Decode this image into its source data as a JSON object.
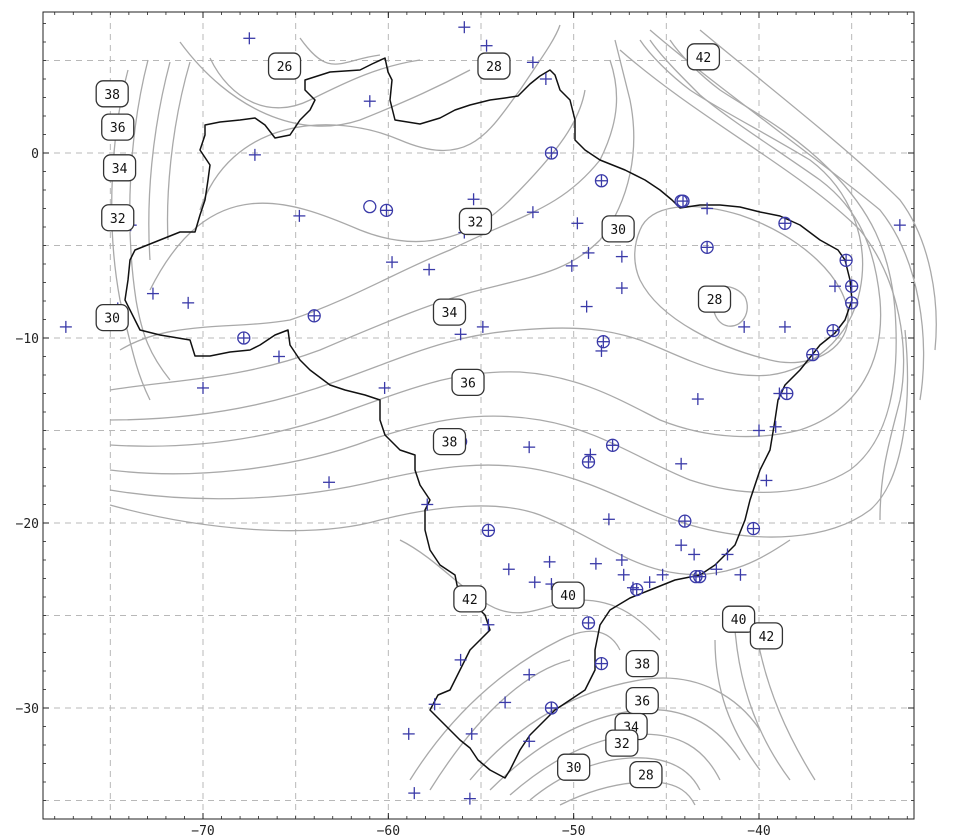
{
  "axes": {
    "x_ticks": [
      -70,
      -60,
      -50,
      -40
    ],
    "y_ticks": [
      0,
      -10,
      -20,
      -30
    ],
    "x_tick_labels": [
      "−70",
      "−60",
      "−50",
      "−40"
    ],
    "y_tick_labels": [
      "0",
      "−10",
      "−20",
      "−30"
    ],
    "xlim": [
      -78,
      -31
    ],
    "ylim": [
      -35.7,
      7.8
    ],
    "grid_x": [
      -75,
      -70,
      -65,
      -60,
      -55,
      -50,
      -45,
      -40,
      -35
    ],
    "grid_y": [
      5,
      0,
      -5,
      -10,
      -15,
      -20,
      -25,
      -30,
      -35
    ]
  },
  "contour_labels": [
    {
      "text": "26",
      "lon": -65.6,
      "lat": 4.7
    },
    {
      "text": "28",
      "lon": -54.3,
      "lat": 4.7
    },
    {
      "text": "42",
      "lon": -43.0,
      "lat": 5.2
    },
    {
      "text": "38",
      "lon": -74.9,
      "lat": 3.2
    },
    {
      "text": "36",
      "lon": -74.6,
      "lat": 1.4
    },
    {
      "text": "34",
      "lon": -74.5,
      "lat": -0.8
    },
    {
      "text": "32",
      "lon": -74.6,
      "lat": -3.5
    },
    {
      "text": "32",
      "lon": -55.3,
      "lat": -3.7
    },
    {
      "text": "30",
      "lon": -47.6,
      "lat": -4.1
    },
    {
      "text": "28",
      "lon": -42.4,
      "lat": -7.9
    },
    {
      "text": "30",
      "lon": -74.9,
      "lat": -8.9
    },
    {
      "text": "34",
      "lon": -56.7,
      "lat": -8.6
    },
    {
      "text": "36",
      "lon": -55.7,
      "lat": -12.4
    },
    {
      "text": "38",
      "lon": -56.7,
      "lat": -15.6
    },
    {
      "text": "42",
      "lon": -55.6,
      "lat": -24.1
    },
    {
      "text": "40",
      "lon": -50.3,
      "lat": -23.9
    },
    {
      "text": "40",
      "lon": -41.1,
      "lat": -25.2
    },
    {
      "text": "42",
      "lon": -39.6,
      "lat": -26.1
    },
    {
      "text": "38",
      "lon": -46.3,
      "lat": -27.6
    },
    {
      "text": "36",
      "lon": -46.3,
      "lat": -29.6
    },
    {
      "text": "34",
      "lon": -46.9,
      "lat": -31.0
    },
    {
      "text": "32",
      "lon": -47.4,
      "lat": -31.9
    },
    {
      "text": "30",
      "lon": -50.0,
      "lat": -33.2
    },
    {
      "text": "28",
      "lon": -46.1,
      "lat": -33.6
    }
  ],
  "stations_plus": [
    [
      -55.9,
      6.8
    ],
    [
      -67.5,
      6.2
    ],
    [
      -54.7,
      5.8
    ],
    [
      -52.2,
      4.9
    ],
    [
      -51.5,
      4.0
    ],
    [
      -61.0,
      2.8
    ],
    [
      -67.2,
      -0.1
    ],
    [
      -64.8,
      -3.4
    ],
    [
      -55.4,
      -2.5
    ],
    [
      -52.2,
      -3.2
    ],
    [
      -49.8,
      -3.8
    ],
    [
      -49.2,
      -5.4
    ],
    [
      -50.1,
      -6.1
    ],
    [
      -47.4,
      -5.6
    ],
    [
      -59.8,
      -5.9
    ],
    [
      -57.8,
      -6.3
    ],
    [
      -49.3,
      -8.3
    ],
    [
      -47.4,
      -7.3
    ],
    [
      -73.9,
      -3.9
    ],
    [
      -74.6,
      -8.4
    ],
    [
      -72.7,
      -7.6
    ],
    [
      -70.8,
      -8.1
    ],
    [
      -77.4,
      -9.4
    ],
    [
      -55.9,
      -4.3
    ],
    [
      -56.1,
      -9.8
    ],
    [
      -54.9,
      -9.4
    ],
    [
      -48.5,
      -10.7
    ],
    [
      -40.8,
      -9.4
    ],
    [
      -38.6,
      -9.4
    ],
    [
      -32.4,
      -3.9
    ],
    [
      -35.9,
      -7.2
    ],
    [
      -42.8,
      -3.0
    ],
    [
      -43.3,
      -13.3
    ],
    [
      -38.9,
      -13.0
    ],
    [
      -40.0,
      -15.0
    ],
    [
      -39.1,
      -14.8
    ],
    [
      -44.2,
      -16.8
    ],
    [
      -39.6,
      -17.7
    ],
    [
      -48.1,
      -19.8
    ],
    [
      -49.1,
      -16.3
    ],
    [
      -52.4,
      -15.9
    ],
    [
      -63.2,
      -17.8
    ],
    [
      -60.2,
      -12.7
    ],
    [
      -65.9,
      -11.0
    ],
    [
      -70.0,
      -12.7
    ],
    [
      -57.9,
      -19.0
    ],
    [
      -51.3,
      -22.1
    ],
    [
      -48.8,
      -22.2
    ],
    [
      -47.4,
      -22.0
    ],
    [
      -47.3,
      -22.8
    ],
    [
      -46.8,
      -23.5
    ],
    [
      -45.9,
      -23.2
    ],
    [
      -45.2,
      -22.8
    ],
    [
      -44.2,
      -21.2
    ],
    [
      -43.5,
      -21.7
    ],
    [
      -42.3,
      -22.5
    ],
    [
      -41.7,
      -21.7
    ],
    [
      -41.0,
      -22.8
    ],
    [
      -53.5,
      -22.5
    ],
    [
      -52.1,
      -23.2
    ],
    [
      -51.2,
      -23.3
    ],
    [
      -54.6,
      -25.5
    ],
    [
      -56.1,
      -27.4
    ],
    [
      -52.4,
      -28.2
    ],
    [
      -57.5,
      -29.8
    ],
    [
      -58.9,
      -31.4
    ],
    [
      -53.7,
      -29.7
    ],
    [
      -55.5,
      -31.4
    ],
    [
      -52.4,
      -31.8
    ],
    [
      -51.2,
      -30.0
    ],
    [
      -58.6,
      -34.6
    ],
    [
      -55.6,
      -34.9
    ]
  ],
  "stations_circle": [
    [
      -44.2,
      -2.6
    ],
    [
      -61.0,
      -2.9
    ]
  ],
  "stations_both": [
    [
      -51.2,
      0.0
    ],
    [
      -48.5,
      -1.5
    ],
    [
      -60.1,
      -3.1
    ],
    [
      -44.1,
      -2.6
    ],
    [
      -38.6,
      -3.8
    ],
    [
      -42.8,
      -5.1
    ],
    [
      -35.3,
      -5.8
    ],
    [
      -35.0,
      -7.2
    ],
    [
      -35.0,
      -8.1
    ],
    [
      -36.0,
      -9.6
    ],
    [
      -37.1,
      -10.9
    ],
    [
      -38.5,
      -13.0
    ],
    [
      -64.0,
      -8.8
    ],
    [
      -67.8,
      -10.0
    ],
    [
      -48.4,
      -10.2
    ],
    [
      -56.1,
      -15.6
    ],
    [
      -47.9,
      -15.8
    ],
    [
      -49.2,
      -16.7
    ],
    [
      -54.6,
      -20.4
    ],
    [
      -44.0,
      -19.9
    ],
    [
      -40.3,
      -20.3
    ],
    [
      -43.2,
      -22.9
    ],
    [
      -43.4,
      -22.9
    ],
    [
      -46.6,
      -23.6
    ],
    [
      -49.2,
      -25.4
    ],
    [
      -48.5,
      -27.6
    ],
    [
      -51.2,
      -30.0
    ]
  ]
}
